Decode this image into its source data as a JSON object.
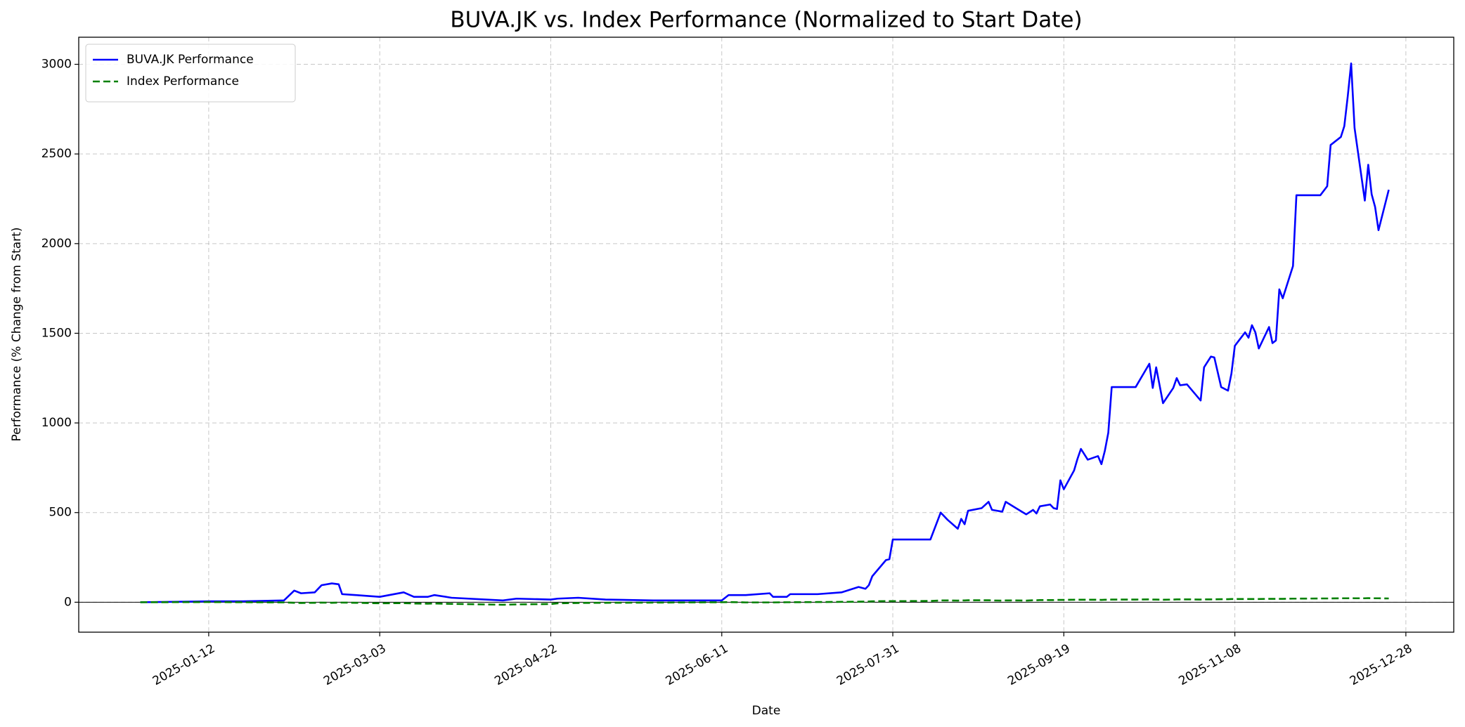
{
  "chart_data": {
    "type": "line",
    "title": "BUVA.JK vs. Index Performance (Normalized to Start Date)",
    "x_label": "Date",
    "y_label": "Performance (% Change from Start)",
    "x": [
      "2024-12-23",
      "2025-01-12",
      "2025-01-22",
      "2025-02-03",
      "2025-02-06",
      "2025-02-08",
      "2025-02-12",
      "2025-02-14",
      "2025-02-17",
      "2025-02-19",
      "2025-02-20",
      "2025-02-24",
      "2025-03-03",
      "2025-03-10",
      "2025-03-13",
      "2025-03-17",
      "2025-03-19",
      "2025-03-24",
      "2025-04-08",
      "2025-04-12",
      "2025-04-22",
      "2025-04-24",
      "2025-04-30",
      "2025-05-08",
      "2025-05-22",
      "2025-06-11",
      "2025-06-13",
      "2025-06-18",
      "2025-06-25",
      "2025-06-26",
      "2025-06-30",
      "2025-07-01",
      "2025-07-09",
      "2025-07-16",
      "2025-07-21",
      "2025-07-23",
      "2025-07-24",
      "2025-07-25",
      "2025-07-29",
      "2025-07-30",
      "2025-07-31",
      "2025-08-11",
      "2025-08-14",
      "2025-08-16",
      "2025-08-19",
      "2025-08-20",
      "2025-08-21",
      "2025-08-22",
      "2025-08-26",
      "2025-08-28",
      "2025-08-29",
      "2025-09-01",
      "2025-09-02",
      "2025-09-05",
      "2025-09-08",
      "2025-09-10",
      "2025-09-11",
      "2025-09-12",
      "2025-09-15",
      "2025-09-16",
      "2025-09-17",
      "2025-09-18",
      "2025-09-19",
      "2025-09-22",
      "2025-09-23",
      "2025-09-24",
      "2025-09-26",
      "2025-09-29",
      "2025-09-30",
      "2025-10-01",
      "2025-10-02",
      "2025-10-03",
      "2025-10-10",
      "2025-10-14",
      "2025-10-15",
      "2025-10-16",
      "2025-10-18",
      "2025-10-21",
      "2025-10-22",
      "2025-10-23",
      "2025-10-25",
      "2025-10-29",
      "2025-10-30",
      "2025-11-01",
      "2025-11-02",
      "2025-11-04",
      "2025-11-06",
      "2025-11-07",
      "2025-11-08",
      "2025-11-11",
      "2025-11-12",
      "2025-11-13",
      "2025-11-14",
      "2025-11-15",
      "2025-11-18",
      "2025-11-19",
      "2025-11-20",
      "2025-11-21",
      "2025-11-22",
      "2025-11-25",
      "2025-11-26",
      "2025-12-03",
      "2025-12-05",
      "2025-12-06",
      "2025-12-09",
      "2025-12-10",
      "2025-12-11",
      "2025-12-12",
      "2025-12-13",
      "2025-12-16",
      "2025-12-17",
      "2025-12-18",
      "2025-12-19",
      "2025-12-20",
      "2025-12-23"
    ],
    "series": [
      {
        "name": "BUVA.JK Performance",
        "color": "#0000ff",
        "style": "solid",
        "values": [
          0,
          5,
          5,
          10,
          65,
          50,
          55,
          95,
          105,
          100,
          45,
          40,
          30,
          55,
          30,
          30,
          40,
          25,
          10,
          20,
          15,
          20,
          25,
          15,
          10,
          10,
          40,
          40,
          50,
          30,
          30,
          45,
          45,
          55,
          85,
          75,
          95,
          145,
          235,
          240,
          350,
          350,
          500,
          460,
          410,
          465,
          435,
          510,
          525,
          560,
          515,
          505,
          560,
          525,
          490,
          515,
          495,
          535,
          545,
          525,
          520,
          680,
          630,
          735,
          800,
          855,
          795,
          815,
          770,
          845,
          945,
          1200,
          1200,
          1330,
          1195,
          1310,
          1110,
          1195,
          1250,
          1210,
          1215,
          1125,
          1310,
          1370,
          1365,
          1200,
          1180,
          1275,
          1430,
          1505,
          1475,
          1545,
          1505,
          1415,
          1535,
          1445,
          1460,
          1745,
          1695,
          1875,
          2270,
          2270,
          2320,
          2550,
          2595,
          2655,
          2820,
          3005,
          2645,
          2240,
          2440,
          2275,
          2205,
          2075,
          2300
        ]
      },
      {
        "name": "Index Performance",
        "color": "#008000",
        "style": "dashed",
        "values": [
          0,
          1,
          0,
          -1,
          -3,
          -4,
          -3,
          -2,
          -3,
          -2,
          -2,
          -3,
          -6,
          -5,
          -7,
          -8,
          -7,
          -9,
          -14,
          -12,
          -10,
          -6,
          -4,
          -3,
          -2,
          0,
          1,
          -1,
          -1,
          -1,
          0,
          0,
          1,
          2,
          3,
          4,
          4,
          5,
          6,
          6,
          6,
          7,
          10,
          10,
          9,
          10,
          10,
          11,
          11,
          11,
          10,
          9,
          10,
          10,
          9,
          11,
          11,
          12,
          12,
          12,
          13,
          13,
          13,
          14,
          14,
          14,
          14,
          14,
          13,
          14,
          14,
          15,
          15,
          16,
          15,
          15,
          14,
          15,
          16,
          16,
          16,
          15,
          16,
          16,
          16,
          17,
          17,
          18,
          18,
          18,
          18,
          18,
          18,
          18,
          19,
          19,
          19,
          19,
          19,
          20,
          20,
          21,
          21,
          21,
          22,
          22,
          22,
          23,
          22,
          22,
          23,
          22,
          22,
          22,
          21
        ]
      }
    ],
    "xlim": [
      "2024-12-05",
      "2026-01-11"
    ],
    "xticks": [
      "2025-01-12",
      "2025-03-03",
      "2025-04-22",
      "2025-06-11",
      "2025-07-31",
      "2025-09-19",
      "2025-11-08",
      "2025-12-28"
    ],
    "ylim": [
      -167,
      3151
    ],
    "yticks": [
      0,
      500,
      1000,
      1500,
      2000,
      2500,
      3000
    ],
    "grid": true,
    "legend": "upper-left"
  }
}
